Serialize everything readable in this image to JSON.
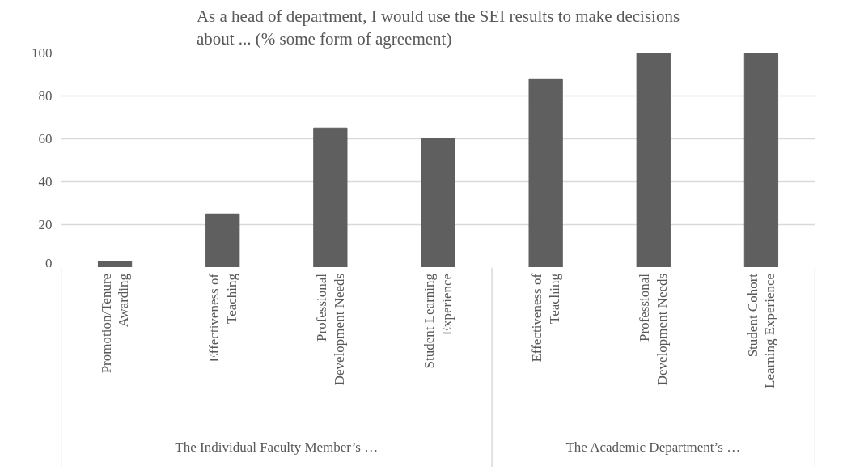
{
  "chart_data": {
    "type": "bar",
    "title": "As a head of department, I would use the SEI results to make decisions about ... (% some form of agreement)",
    "categories": [
      "Promotion/Tenure Awarding",
      "Effectiveness of Teaching",
      "Professional Development Needs",
      "Student Learning Experience",
      "Effectiveness of Teaching",
      "Professional Development Needs",
      "Student Cohort Learning Experience"
    ],
    "values": [
      3,
      25,
      65,
      60,
      88,
      100,
      100
    ],
    "color": "#5f5f5f",
    "ylim": [
      0,
      100
    ],
    "yticks": [
      0,
      20,
      40,
      60,
      80,
      100
    ],
    "grid": "y",
    "annotations": [
      "The Individual Faculty Member’s …",
      "The Academic Department’s …"
    ]
  }
}
